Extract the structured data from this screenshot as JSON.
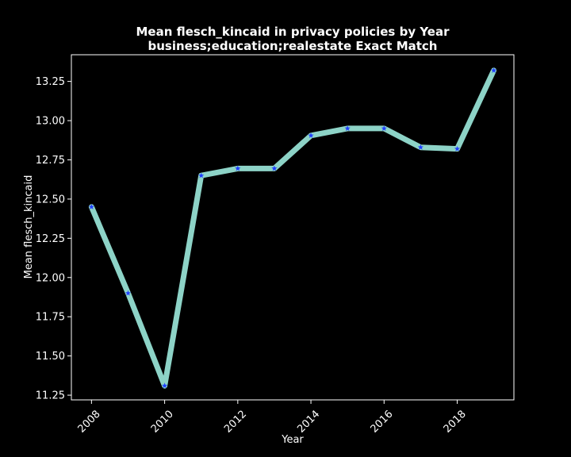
{
  "chart_data": {
    "type": "line",
    "title": "Mean flesch_kincaid in privacy policies by Year",
    "subtitle": "business;education;realestate Exact Match",
    "xlabel": "Year",
    "ylabel": "Mean flesch_kincaid",
    "x": [
      2008,
      2009,
      2010,
      2011,
      2012,
      2013,
      2014,
      2015,
      2016,
      2017,
      2018,
      2019
    ],
    "series": [
      {
        "values": [
          12.45,
          11.9,
          11.31,
          12.65,
          12.695,
          12.695,
          12.905,
          12.95,
          12.95,
          12.83,
          12.82,
          13.32
        ]
      }
    ],
    "xticks": [
      "2008",
      "2010",
      "2012",
      "2014",
      "2016",
      "2018"
    ],
    "yticks": [
      "11.25",
      "11.50",
      "11.75",
      "12.00",
      "12.25",
      "12.50",
      "12.75",
      "13.00",
      "13.25"
    ],
    "xlim": [
      2007.45,
      2019.55
    ],
    "ylim": [
      11.22,
      13.42
    ],
    "grid": false,
    "line_color": "#8dd3c7",
    "marker_color": "#1f3fff",
    "marker": "star",
    "background": "#000000"
  }
}
